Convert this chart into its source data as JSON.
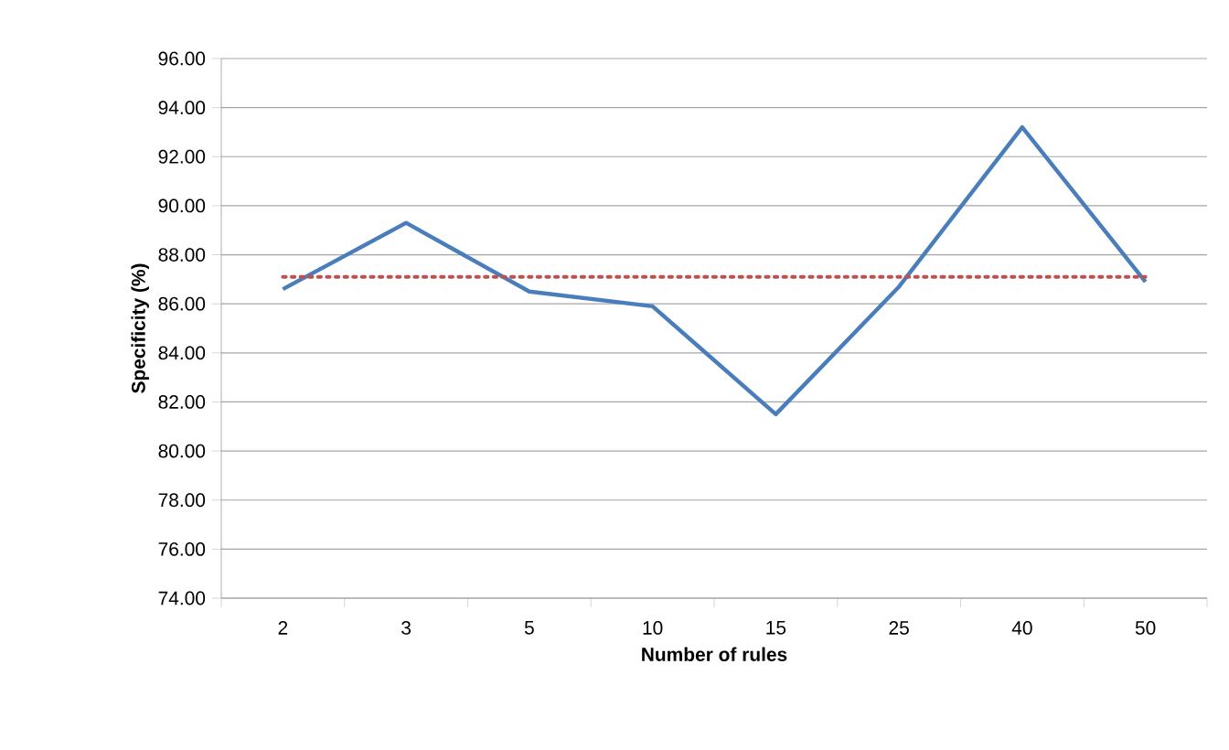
{
  "chart_data": {
    "type": "line",
    "xlabel": "Number of rules",
    "ylabel": "Specificity (%)",
    "categories": [
      "2",
      "3",
      "5",
      "10",
      "15",
      "25",
      "40",
      "50"
    ],
    "series": [
      {
        "color": "#4a7ebb",
        "values": [
          86.6,
          89.3,
          86.5,
          85.9,
          81.5,
          86.7,
          93.2,
          86.9
        ]
      }
    ],
    "ref_lines": [
      {
        "axis": "y",
        "value": 87.1,
        "color": "#c0504d",
        "line_style": "dotted"
      }
    ],
    "ylim": [
      74,
      96
    ],
    "yticks": [
      {
        "value": 74,
        "label": "74.00"
      },
      {
        "value": 76,
        "label": "76.00"
      },
      {
        "value": 78,
        "label": "78.00"
      },
      {
        "value": 80,
        "label": "80.00"
      },
      {
        "value": 82,
        "label": "82.00"
      },
      {
        "value": 84,
        "label": "84.00"
      },
      {
        "value": 86,
        "label": "86.00"
      },
      {
        "value": 88,
        "label": "88.00"
      },
      {
        "value": 90,
        "label": "90.00"
      },
      {
        "value": 92,
        "label": "92.00"
      },
      {
        "value": 94,
        "label": "94.00"
      },
      {
        "value": 96,
        "label": "96.00"
      }
    ],
    "grid": "y",
    "marker": "none",
    "line_style": "solid"
  }
}
